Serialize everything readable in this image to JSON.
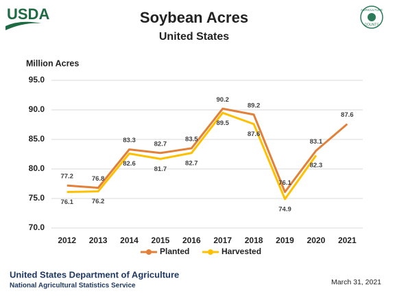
{
  "logo": "USDA",
  "seal": {
    "top": "AGRICULTURE",
    "bottom": "COUNTS"
  },
  "chart_data": {
    "type": "line",
    "title": "Soybean Acres",
    "subtitle": "United States",
    "y_label": "Million Acres",
    "categories": [
      "2012",
      "2013",
      "2014",
      "2015",
      "2016",
      "2017",
      "2018",
      "2019",
      "2020",
      "2021"
    ],
    "series": [
      {
        "name": "Planted",
        "color": "#E2803A",
        "values": [
          77.2,
          76.8,
          83.3,
          82.7,
          83.5,
          90.2,
          89.2,
          76.1,
          83.1,
          87.6
        ]
      },
      {
        "name": "Harvested",
        "color": "#FFC000",
        "values": [
          76.1,
          76.2,
          82.6,
          81.7,
          82.7,
          89.5,
          87.6,
          74.9,
          82.3,
          null
        ]
      }
    ],
    "ylim": [
      70,
      95
    ],
    "yticks": [
      {
        "value": 70,
        "label": "70.0"
      },
      {
        "value": 75,
        "label": "75.0"
      },
      {
        "value": 80,
        "label": "80.0"
      },
      {
        "value": 85,
        "label": "85.0"
      },
      {
        "value": 90,
        "label": "90.0"
      },
      {
        "value": 95,
        "label": "95.0"
      }
    ],
    "grid": true,
    "legend": "bottom"
  },
  "footer": {
    "org": "United States Department of Agriculture",
    "agency": "National Agricultural Statistics Service",
    "date": "March 31, 2021"
  }
}
